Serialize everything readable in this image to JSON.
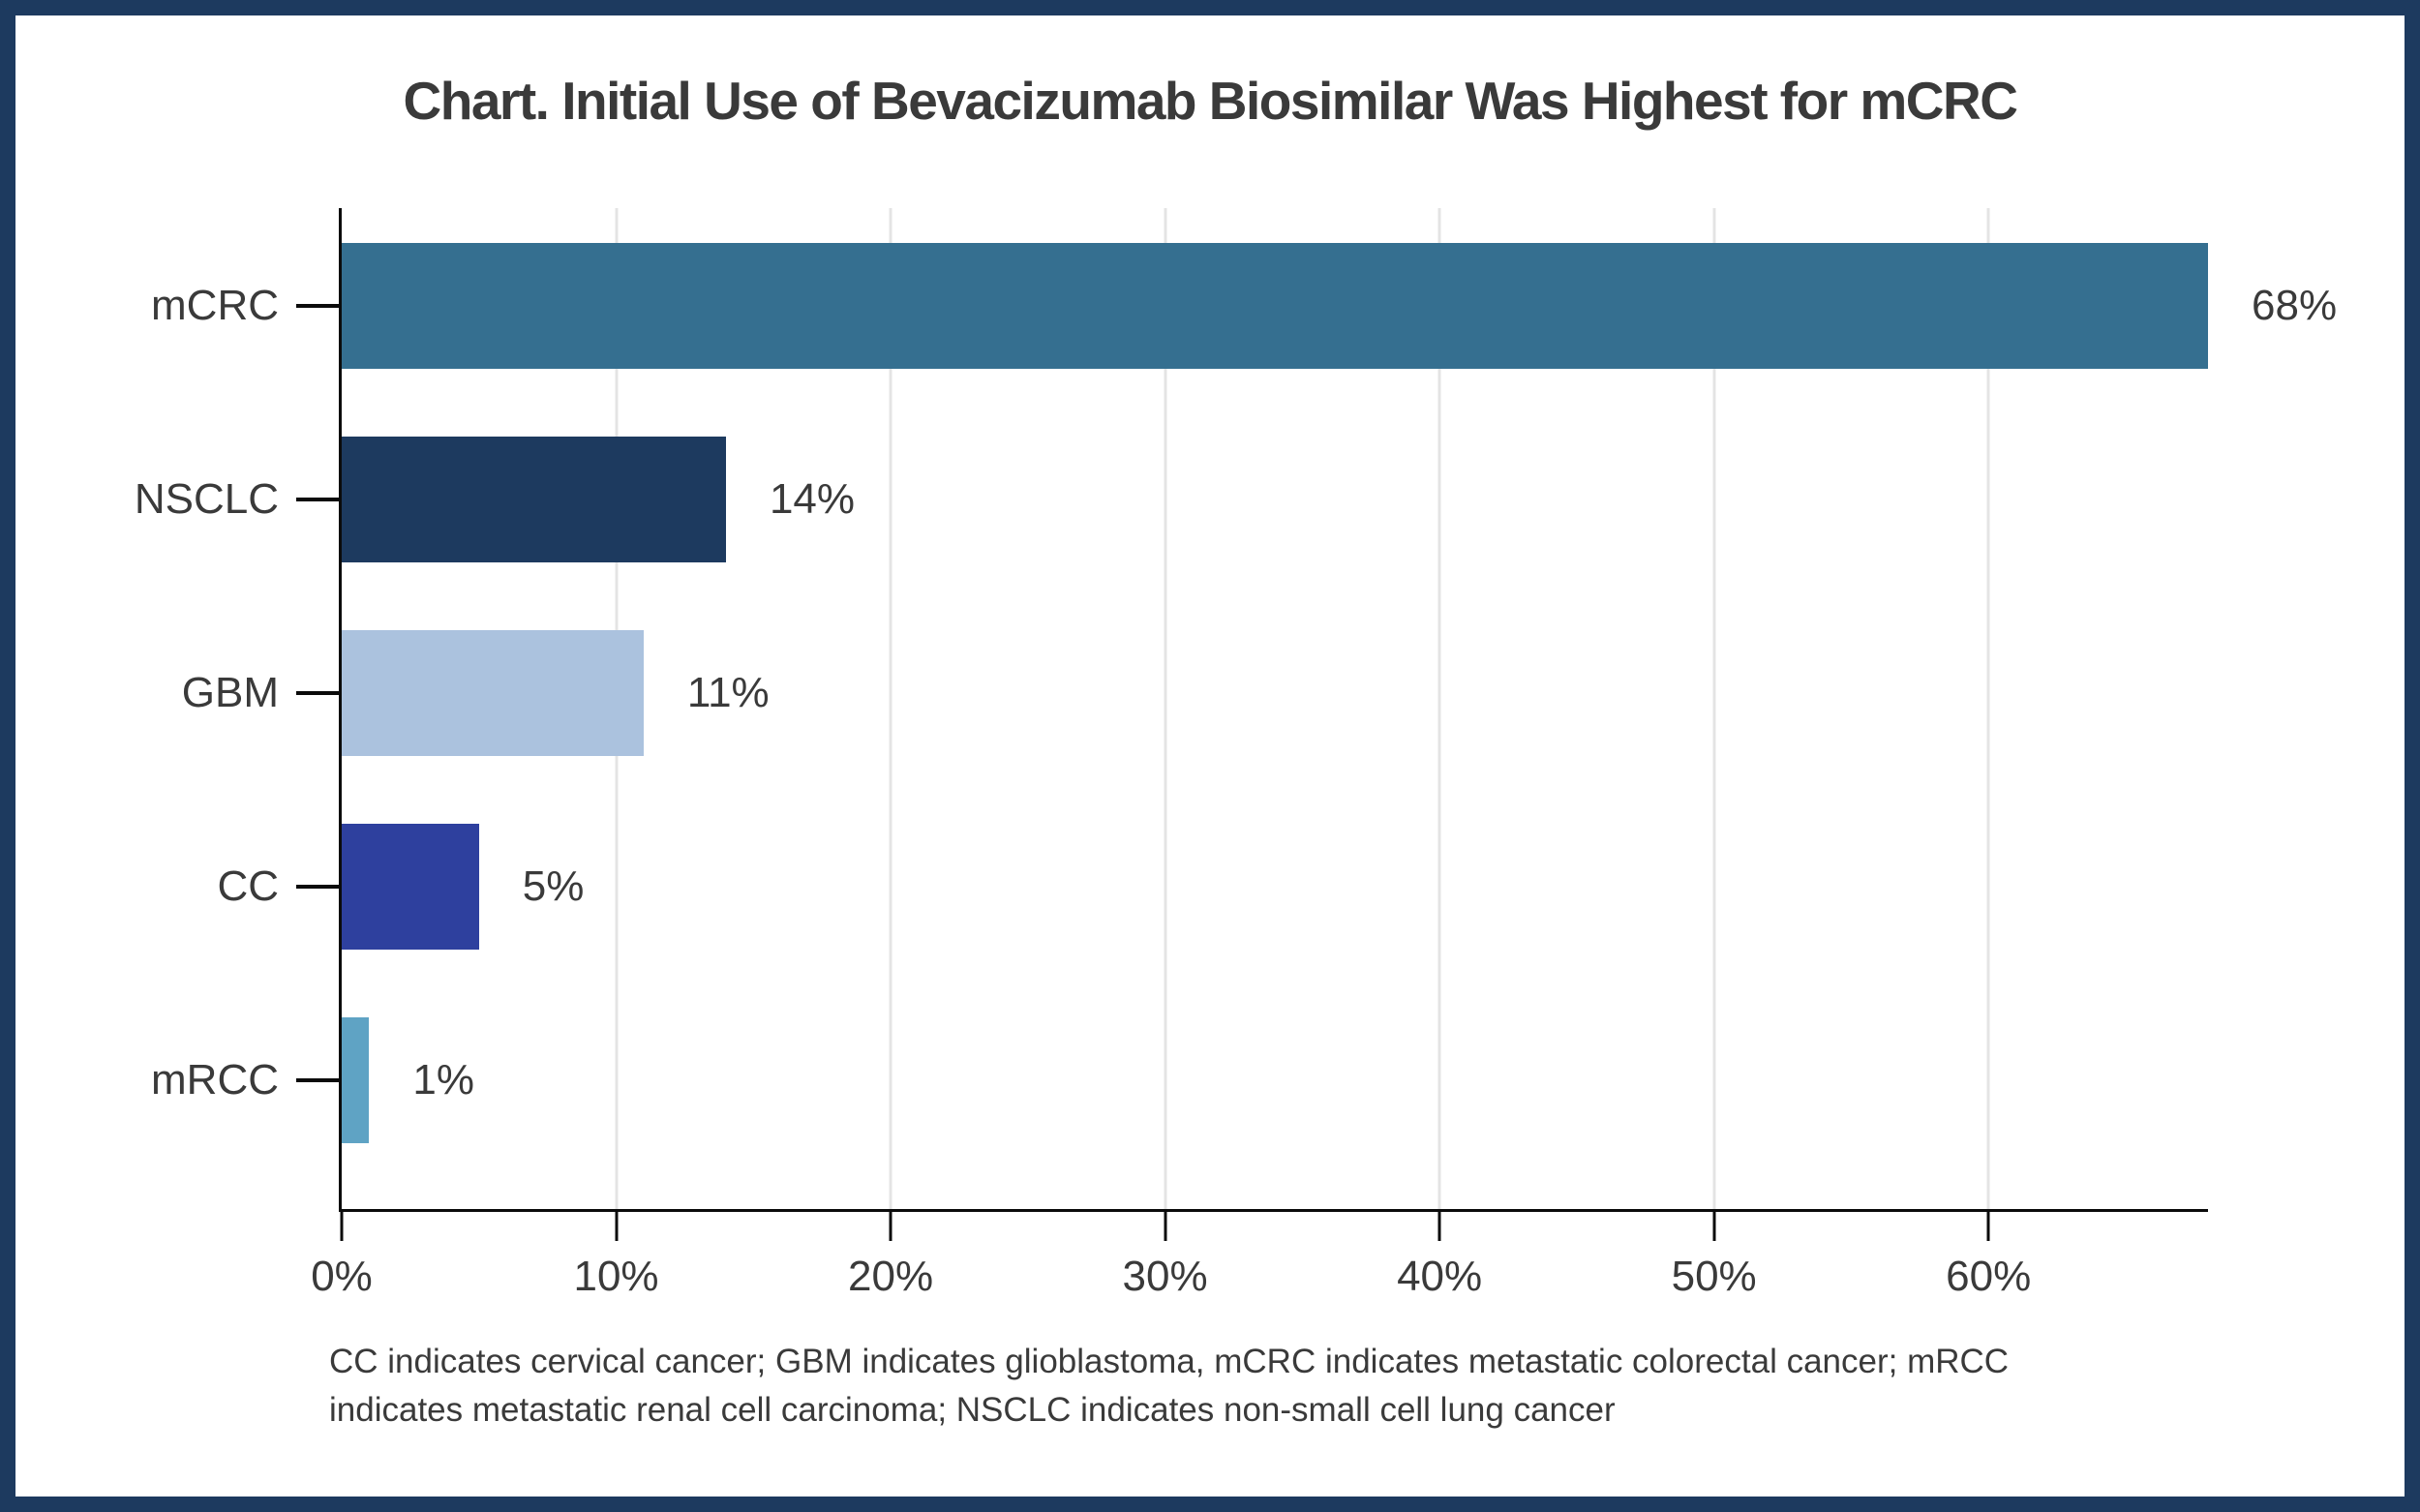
{
  "frame": {
    "border_color": "#1d3a5f",
    "background_color": "#ffffff"
  },
  "title": "Chart. Initial Use of Bevacizumab Biosimilar Was Highest for mCRC",
  "chart_data": {
    "type": "bar",
    "orientation": "horizontal",
    "title": "Chart. Initial Use of Bevacizumab Biosimilar Was Highest for mCRC",
    "categories": [
      "mCRC",
      "NSCLC",
      "GBM",
      "CC",
      "mRCC"
    ],
    "values": [
      68,
      14,
      11,
      5,
      1
    ],
    "value_labels": [
      "68%",
      "14%",
      "11%",
      "5%",
      "1%"
    ],
    "bar_colors": [
      "#356f90",
      "#1d3a5f",
      "#abc2de",
      "#2e409e",
      "#5fa3c4"
    ],
    "xlabel": "",
    "ylabel": "",
    "xlim": [
      0,
      68
    ],
    "x_ticks": [
      0,
      10,
      20,
      30,
      40,
      50,
      60
    ],
    "x_tick_labels": [
      "0%",
      "10%",
      "20%",
      "30%",
      "40%",
      "50%",
      "60%"
    ],
    "grid": true,
    "gridline_color": "#e4e4e4",
    "axis_color": "#0b0b0b",
    "text_color": "#3a3a3a",
    "legend": "none"
  },
  "footnote": "CC indicates cervical cancer; GBM indicates glioblastoma, mCRC indicates metastatic colorectal cancer; mRCC indicates metastatic renal cell carcinoma; NSCLC indicates non-small cell lung cancer"
}
